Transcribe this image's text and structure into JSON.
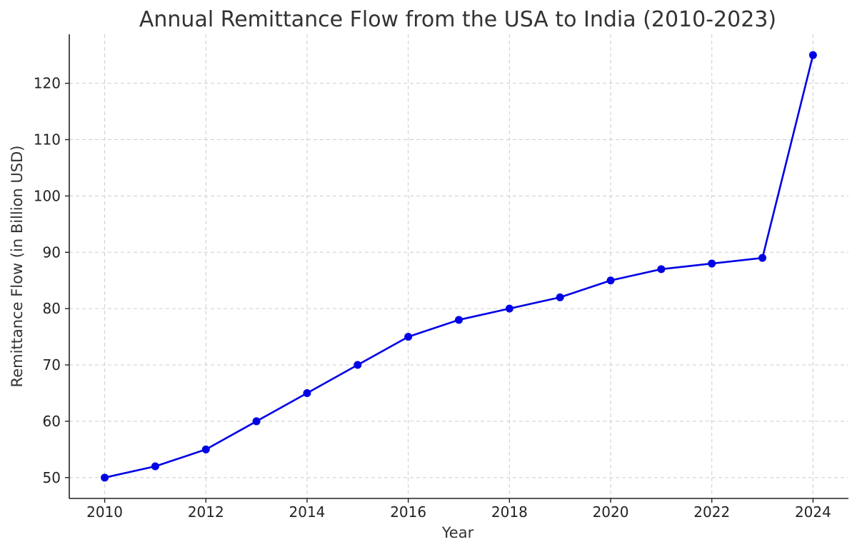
{
  "chart_data": {
    "type": "line",
    "title": "Annual Remittance Flow from the USA to India (2010-2023)",
    "xlabel": "Year",
    "ylabel": "Remittance Flow (in Billion USD)",
    "xlim": [
      2009.3,
      2024.7
    ],
    "ylim": [
      46.3,
      128.7
    ],
    "x_ticks": [
      2010,
      2012,
      2014,
      2016,
      2018,
      2020,
      2022,
      2024
    ],
    "y_ticks": [
      50,
      60,
      70,
      80,
      90,
      100,
      110,
      120
    ],
    "grid": true,
    "series": [
      {
        "color": "#0000e6",
        "marker": "circle",
        "x": [
          2010,
          2011,
          2012,
          2013,
          2014,
          2015,
          2016,
          2017,
          2018,
          2019,
          2020,
          2021,
          2022,
          2023,
          2024
        ],
        "y": [
          50,
          52,
          55,
          60,
          65,
          70,
          75,
          78,
          80,
          82,
          85,
          87,
          88,
          89,
          125
        ]
      }
    ]
  }
}
